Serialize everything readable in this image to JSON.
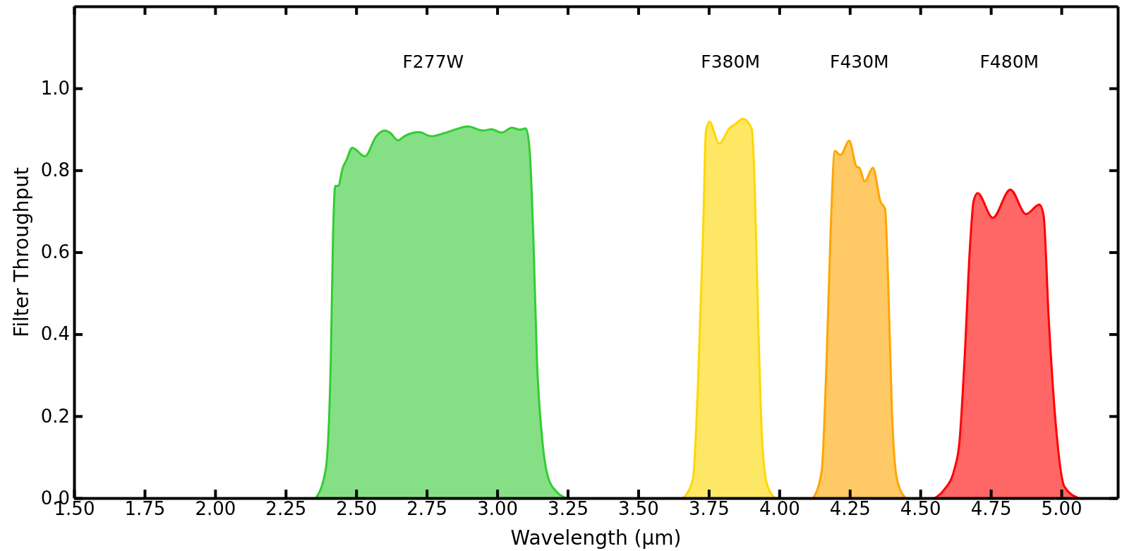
{
  "chart_data": {
    "type": "area",
    "xlabel": "Wavelength (μm)",
    "ylabel": "Filter Throughput",
    "annotations": [
      "F277W",
      "F380M",
      "F430M",
      "F480M"
    ],
    "xlim": [
      1.5,
      5.2
    ],
    "ylim": [
      0,
      1.2
    ],
    "xticks": [
      {
        "value": 1.5,
        "label": "1.50"
      },
      {
        "value": 1.75,
        "label": "1.75"
      },
      {
        "value": 2.0,
        "label": "2.00"
      },
      {
        "value": 2.25,
        "label": "2.25"
      },
      {
        "value": 2.5,
        "label": "2.50"
      },
      {
        "value": 2.75,
        "label": "2.75"
      },
      {
        "value": 3.0,
        "label": "3.00"
      },
      {
        "value": 3.25,
        "label": "3.25"
      },
      {
        "value": 3.5,
        "label": "3.50"
      },
      {
        "value": 3.75,
        "label": "3.75"
      },
      {
        "value": 4.0,
        "label": "4.00"
      },
      {
        "value": 4.25,
        "label": "4.25"
      },
      {
        "value": 4.5,
        "label": "4.50"
      },
      {
        "value": 4.75,
        "label": "4.75"
      },
      {
        "value": 5.0,
        "label": "5.00"
      }
    ],
    "yticks": [
      {
        "value": 0,
        "label": "0.0"
      },
      {
        "value": 0.2,
        "label": "0.2"
      },
      {
        "value": 0.4,
        "label": "0.4"
      },
      {
        "value": 0.6,
        "label": "0.6"
      },
      {
        "value": 0.8,
        "label": "0.8"
      },
      {
        "value": 1.0,
        "label": "1.0"
      }
    ],
    "series": [
      {
        "color": "#33cc33",
        "x": [
          2.357,
          2.392,
          2.41,
          2.418,
          2.426,
          2.436,
          2.453,
          2.465,
          2.486,
          2.531,
          2.571,
          2.601,
          2.619,
          2.649,
          2.671,
          2.723,
          2.767,
          2.819,
          2.897,
          2.949,
          2.98,
          3.015,
          3.053,
          3.08,
          3.102,
          3.115,
          3.128,
          3.141,
          3.158,
          3.18,
          3.211,
          3.245
        ],
        "values": [
          0,
          0.07,
          0.335,
          0.64,
          0.762,
          0.762,
          0.807,
          0.824,
          0.855,
          0.834,
          0.883,
          0.897,
          0.892,
          0.873,
          0.883,
          0.893,
          0.883,
          0.892,
          0.907,
          0.897,
          0.9,
          0.892,
          0.904,
          0.899,
          0.902,
          0.849,
          0.638,
          0.336,
          0.155,
          0.052,
          0.015,
          0
        ]
      },
      {
        "color": "#ffd700",
        "x": [
          3.659,
          3.694,
          3.712,
          3.73,
          3.74,
          3.752,
          3.787,
          3.823,
          3.845,
          3.871,
          3.902,
          3.911,
          3.924,
          3.938,
          3.956,
          3.986
        ],
        "values": [
          0,
          0.047,
          0.281,
          0.65,
          0.896,
          0.919,
          0.865,
          0.902,
          0.913,
          0.926,
          0.902,
          0.804,
          0.465,
          0.158,
          0.035,
          0
        ]
      },
      {
        "color": "#ffa500",
        "x": [
          4.12,
          4.15,
          4.168,
          4.182,
          4.197,
          4.217,
          4.248,
          4.274,
          4.284,
          4.303,
          4.332,
          4.359,
          4.375,
          4.386,
          4.399,
          4.417,
          4.448
        ],
        "values": [
          0,
          0.065,
          0.342,
          0.65,
          0.847,
          0.837,
          0.872,
          0.809,
          0.806,
          0.773,
          0.806,
          0.723,
          0.706,
          0.527,
          0.219,
          0.047,
          0
        ]
      },
      {
        "color": "#ff0000",
        "x": [
          4.552,
          4.583,
          4.621,
          4.639,
          4.658,
          4.676,
          4.689,
          4.703,
          4.757,
          4.819,
          4.875,
          4.922,
          4.937,
          4.955,
          4.98,
          5.011,
          5.061
        ],
        "values": [
          0,
          0.019,
          0.071,
          0.139,
          0.355,
          0.613,
          0.725,
          0.744,
          0.684,
          0.753,
          0.693,
          0.716,
          0.69,
          0.441,
          0.182,
          0.028,
          0
        ]
      }
    ]
  }
}
